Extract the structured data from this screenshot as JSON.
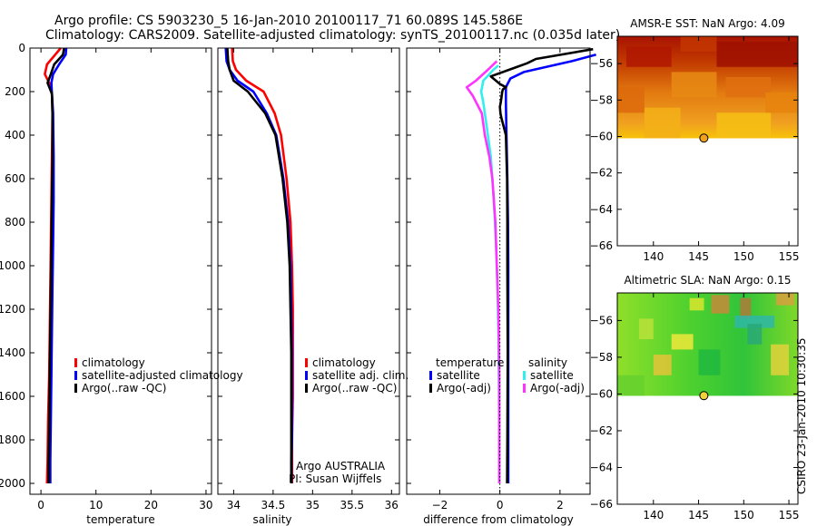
{
  "figure": {
    "title_line1": "Argo profile: CS 5903230_5 16-Jan-2010 20100117_71 60.089S 145.586E",
    "title_line2": "Climatology: CARS2009. Satellite-adjusted climatology: synTS_20100117.nc (0.035d later)",
    "footer_vertical": "CSIRO 23-Jan-2010 10:30:35",
    "argo_label": "Argo AUSTRALIA",
    "pi_label": "PI: Susan Wijffels"
  },
  "colors": {
    "red": "#ff0000",
    "blue": "#0000ff",
    "black": "#000000",
    "cyan": "#33eeee",
    "magenta": "#ff33ff"
  },
  "chart_data": [
    {
      "id": "temperature",
      "type": "line",
      "title": "",
      "xlabel": "temperature",
      "ylabel": "",
      "xlim": [
        -2,
        31
      ],
      "ylim": [
        2050,
        0
      ],
      "xticks": [
        0,
        10,
        20,
        30
      ],
      "yticks": [
        0,
        200,
        400,
        600,
        800,
        1000,
        1200,
        1400,
        1600,
        1800,
        2000
      ],
      "legend": [
        "climatology",
        "satellite-adjusted climatology",
        "Argo(..raw -QC)"
      ],
      "series": [
        {
          "name": "climatology",
          "color": "red",
          "x": [
            3.6,
            2.6,
            1.1,
            0.7,
            1.5,
            2.0,
            2.1,
            2.0,
            1.9,
            1.8,
            1.7,
            1.6,
            1.5,
            1.3,
            1.2,
            1.1
          ],
          "y": [
            0,
            30,
            75,
            120,
            160,
            210,
            300,
            500,
            700,
            900,
            1100,
            1300,
            1500,
            1700,
            1900,
            2000
          ]
        },
        {
          "name": "satellite-adjusted climatology",
          "color": "blue",
          "x": [
            4.6,
            4.5,
            3.3,
            2.2,
            1.9,
            2.0,
            2.2,
            2.3,
            2.3,
            2.2,
            2.1,
            2.0,
            1.9,
            1.8,
            1.7,
            1.7
          ],
          "y": [
            0,
            30,
            75,
            120,
            160,
            210,
            300,
            500,
            700,
            900,
            1100,
            1300,
            1500,
            1700,
            1900,
            2000
          ]
        },
        {
          "name": "Argo(..raw -QC)",
          "color": "black",
          "x": [
            4.2,
            4.0,
            2.4,
            1.8,
            1.2,
            2.0,
            2.1,
            2.1,
            2.0,
            1.9,
            1.8,
            1.7,
            1.6,
            1.5,
            1.4,
            1.4
          ],
          "y": [
            0,
            30,
            75,
            120,
            160,
            210,
            300,
            500,
            700,
            900,
            1100,
            1300,
            1500,
            1700,
            1900,
            2000
          ]
        }
      ]
    },
    {
      "id": "salinity",
      "type": "line",
      "title": "",
      "xlabel": "salinity",
      "ylabel": "",
      "xlim": [
        33.8,
        36.1
      ],
      "ylim": [
        2050,
        0
      ],
      "xticks": [
        34,
        34.5,
        35,
        35.5,
        36
      ],
      "yticks": [
        0,
        200,
        400,
        600,
        800,
        1000,
        1200,
        1400,
        1600,
        1800,
        2000
      ],
      "legend": [
        "climatology",
        "satellite adj. clim.",
        "Argo(..raw -QC)"
      ],
      "series": [
        {
          "name": "climatology",
          "color": "red",
          "x": [
            33.98,
            33.99,
            34.03,
            34.16,
            34.38,
            34.52,
            34.6,
            34.67,
            34.72,
            34.74,
            34.75,
            34.75,
            34.75,
            34.74,
            34.74,
            34.74
          ],
          "y": [
            0,
            60,
            100,
            150,
            200,
            300,
            400,
            600,
            800,
            1000,
            1200,
            1400,
            1600,
            1800,
            1900,
            2000
          ]
        },
        {
          "name": "satellite adj. clim.",
          "color": "blue",
          "x": [
            33.9,
            33.91,
            33.95,
            34.05,
            34.25,
            34.42,
            34.54,
            34.63,
            34.69,
            34.72,
            34.73,
            34.74,
            34.74,
            34.74,
            34.73,
            34.73
          ],
          "y": [
            0,
            60,
            100,
            150,
            200,
            300,
            400,
            600,
            800,
            1000,
            1200,
            1400,
            1600,
            1800,
            1900,
            2000
          ]
        },
        {
          "name": "Argo(..raw -QC)",
          "color": "black",
          "x": [
            33.92,
            33.93,
            33.95,
            34.0,
            34.18,
            34.4,
            34.53,
            34.62,
            34.68,
            34.71,
            34.72,
            34.73,
            34.73,
            34.73,
            34.73,
            34.73
          ],
          "y": [
            0,
            60,
            100,
            150,
            200,
            300,
            400,
            600,
            800,
            1000,
            1200,
            1400,
            1600,
            1800,
            1900,
            2000
          ]
        }
      ]
    },
    {
      "id": "difference",
      "type": "line",
      "title": "",
      "xlabel": "difference from climatology",
      "ylabel": "",
      "xlim": [
        -3.1,
        3.0
      ],
      "ylim": [
        2050,
        0
      ],
      "xticks": [
        -2,
        0,
        2
      ],
      "yticks": [
        0,
        200,
        400,
        600,
        800,
        1000,
        1200,
        1400,
        1600,
        1800,
        2000
      ],
      "legend_groups": [
        {
          "title": "temperature",
          "entries": [
            "satellite",
            "Argo(-adj)"
          ]
        },
        {
          "title": "salinity",
          "entries": [
            "satellite",
            "Argo(-adj)"
          ]
        }
      ],
      "series": [
        {
          "name": "temperature satellite",
          "color": "blue",
          "x": [
            3.2,
            2.4,
            0.8,
            0.35,
            0.2,
            0.2,
            0.22,
            0.25,
            0.27,
            0.28,
            0.28,
            0.28,
            0.28,
            0.28
          ],
          "y": [
            30,
            60,
            110,
            140,
            180,
            250,
            400,
            600,
            800,
            1000,
            1200,
            1500,
            1800,
            2000
          ]
        },
        {
          "name": "temperature Argo(-adj)",
          "color": "black",
          "x": [
            3.1,
            1.2,
            0.9,
            0.5,
            -0.3,
            0.0,
            0.2,
            0.1,
            0.08,
            0.05,
            0.03,
            0.0,
            0.02,
            0.05,
            0.2,
            0.24,
            0.25,
            0.25,
            0.26,
            0.25,
            0.24
          ],
          "y": [
            5,
            50,
            70,
            90,
            130,
            165,
            180,
            190,
            200,
            230,
            250,
            270,
            300,
            320,
            400,
            600,
            800,
            1000,
            1400,
            1800,
            2000
          ]
        },
        {
          "name": "salinity satellite",
          "color": "cyan",
          "x": [
            -0.05,
            -0.22,
            -0.55,
            -0.62,
            -0.55,
            -0.45,
            -0.3,
            -0.2,
            -0.13,
            -0.08,
            -0.05,
            -0.03,
            -0.02,
            -0.02
          ],
          "y": [
            80,
            100,
            150,
            200,
            250,
            350,
            500,
            700,
            900,
            1100,
            1300,
            1600,
            1800,
            2000
          ]
        },
        {
          "name": "salinity Argo(-adj)",
          "color": "magenta",
          "x": [
            -0.1,
            -0.4,
            -0.8,
            -1.1,
            -0.9,
            -0.6,
            -0.5,
            -0.35,
            -0.25,
            -0.15,
            -0.1,
            -0.05,
            -0.02,
            -0.02
          ],
          "y": [
            60,
            100,
            150,
            180,
            220,
            300,
            400,
            500,
            600,
            800,
            1000,
            1200,
            1500,
            2000
          ]
        }
      ]
    },
    {
      "id": "sst_map",
      "type": "heatmap",
      "title": "AMSR-E SST: NaN Argo: 4.09",
      "xlim": [
        136,
        156
      ],
      "ylim": [
        -66,
        -54.5
      ],
      "xticks": [
        140,
        145,
        150,
        155
      ],
      "yticks": [
        -56,
        -58,
        -60,
        -62,
        -64,
        -66
      ],
      "data_extent_lat": [
        -60.1,
        -54.5
      ],
      "profile_marker": {
        "lon": 145.586,
        "lat": -60.089
      }
    },
    {
      "id": "sla_map",
      "type": "heatmap",
      "title": "Altimetric SLA: NaN Argo: 0.15",
      "xlim": [
        136,
        156
      ],
      "ylim": [
        -66,
        -54.5
      ],
      "xticks": [
        140,
        145,
        150,
        155
      ],
      "yticks": [
        -56,
        -58,
        -60,
        -62,
        -64,
        -66
      ],
      "data_extent_lat": [
        -60.1,
        -54.5
      ],
      "profile_marker": {
        "lon": 145.586,
        "lat": -60.089
      }
    }
  ]
}
